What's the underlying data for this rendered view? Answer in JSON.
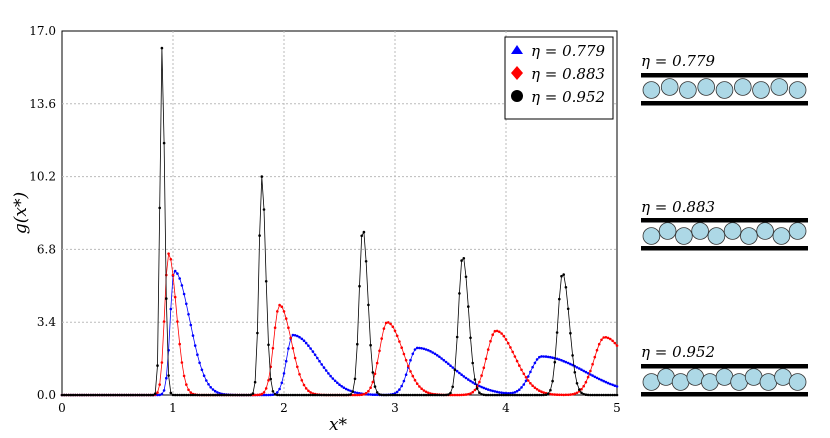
{
  "chart_data": {
    "type": "line",
    "title": "",
    "xlabel": "x*",
    "ylabel": "g(x*)",
    "xlim": [
      0,
      5
    ],
    "ylim": [
      0,
      17
    ],
    "x_ticks": [
      "0",
      "1",
      "2",
      "3",
      "4",
      "5"
    ],
    "y_ticks": [
      "0.0",
      "3.4",
      "6.8",
      "10.2",
      "13.6",
      "17.0"
    ],
    "grid": true,
    "legend_position": "top-right",
    "series": [
      {
        "name": "η = 0.779",
        "color": "#0000ff",
        "marker": "triangle",
        "peaks": [
          {
            "x": 1.01,
            "y": 5.8
          },
          {
            "x": 2.08,
            "y": 2.8
          },
          {
            "x": 3.2,
            "y": 2.2
          },
          {
            "x": 4.32,
            "y": 1.8
          }
        ]
      },
      {
        "name": "η = 0.883",
        "color": "#ff0000",
        "marker": "diamond",
        "peaks": [
          {
            "x": 0.96,
            "y": 6.6
          },
          {
            "x": 1.96,
            "y": 4.2
          },
          {
            "x": 2.93,
            "y": 3.4
          },
          {
            "x": 3.91,
            "y": 3.0
          },
          {
            "x": 4.89,
            "y": 2.7
          }
        ]
      },
      {
        "name": "η = 0.952",
        "color": "#000000",
        "marker": "circle",
        "peaks": [
          {
            "x": 0.9,
            "y": 16.2
          },
          {
            "x": 1.8,
            "y": 10.2
          },
          {
            "x": 2.71,
            "y": 7.8
          },
          {
            "x": 3.61,
            "y": 6.5
          },
          {
            "x": 4.51,
            "y": 5.7
          }
        ]
      }
    ]
  },
  "panels": [
    {
      "label": "η = 0.779",
      "discs": 9
    },
    {
      "label": "η = 0.883",
      "discs": 10
    },
    {
      "label": "η = 0.952",
      "discs": 11
    }
  ],
  "colors": {
    "disc_fill": "#add8e6",
    "grid": "#bbbbbb"
  }
}
